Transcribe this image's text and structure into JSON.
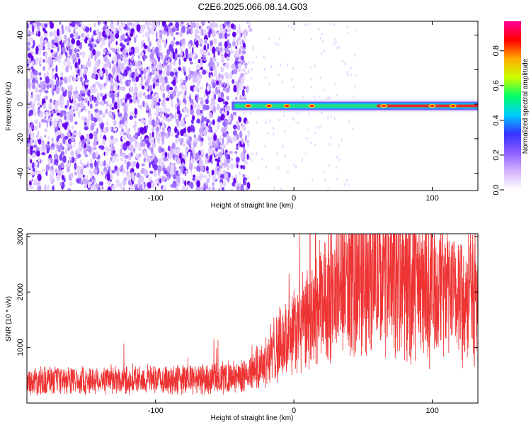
{
  "title": "C2E6.2025.066.08.14.G03",
  "colors": {
    "snr_line": "#ee3333",
    "spectrum_low": "#cc99ff",
    "spectrum_mid": "#6600ff",
    "axis": "#000000",
    "background": "#ffffff"
  },
  "chart_data": [
    {
      "type": "heatmap",
      "ylabel": "Frequency (Hz)",
      "xlabel": "Height of straight line (km)",
      "xlim": [
        -193,
        133
      ],
      "ylim": [
        -50,
        48
      ],
      "x_ticks": [
        -100,
        0,
        100
      ],
      "x_tick_labels": [
        "-100",
        "0",
        "100"
      ],
      "y_ticks": [
        -40,
        -20,
        0,
        20,
        40
      ],
      "y_tick_labels": [
        "-40",
        "-20",
        "0",
        "20",
        "40"
      ],
      "noise_region_x": [
        -193,
        -37
      ],
      "signal_band": {
        "x_range": [
          -45,
          133
        ],
        "center_frequency": -1,
        "peaks_x": [
          -33,
          -18,
          -5,
          13,
          65,
          100,
          115
        ]
      },
      "colorbar": {
        "label": "Normalized spectral amplitude",
        "range": [
          0.0,
          0.97
        ],
        "ticks": [
          0.0,
          0.2,
          0.4,
          0.6,
          0.8
        ],
        "tick_labels": [
          "0.0",
          "0.2",
          "0.4",
          "0.6",
          "0.8"
        ],
        "colormap": [
          "#ffffff",
          "#d6b3ff",
          "#8c5cff",
          "#3333ff",
          "#00ccff",
          "#00ff66",
          "#ccff00",
          "#ffaa00",
          "#ff0000",
          "#ff0099"
        ]
      }
    },
    {
      "type": "line",
      "ylabel": "SNR (10 * v/v)",
      "xlabel": "Height of straight line (km)",
      "xlim": [
        -193,
        133
      ],
      "ylim": [
        0,
        3050
      ],
      "x_ticks": [
        -100,
        0,
        100
      ],
      "x_tick_labels": [
        "-100",
        "0",
        "100"
      ],
      "y_ticks": [
        1000,
        2000,
        3000
      ],
      "y_tick_labels": [
        "1000",
        "2000",
        "3000"
      ],
      "series": [
        {
          "x": [
            -193,
            -150,
            -100,
            -60,
            -40,
            -30,
            -20,
            -10,
            0,
            10,
            20,
            30,
            40,
            50,
            60,
            70,
            80,
            90,
            100,
            110,
            120,
            133
          ],
          "values": [
            400,
            410,
            420,
            440,
            460,
            560,
            800,
            1050,
            1250,
            1500,
            1800,
            2050,
            2200,
            2300,
            2300,
            2200,
            2150,
            2100,
            2050,
            2000,
            1950,
            1900
          ]
        }
      ]
    }
  ]
}
